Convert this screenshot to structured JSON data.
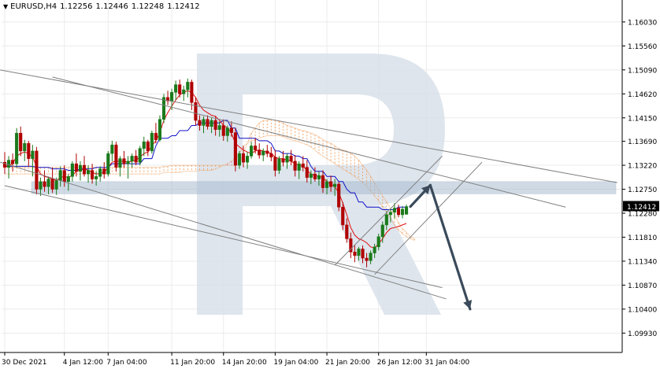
{
  "header": {
    "symbol": "EURUSD,H4",
    "open": "1.12256",
    "high": "1.12446",
    "low": "1.12248",
    "close": "1.12412"
  },
  "chart_data": {
    "type": "candlestick",
    "title": "",
    "price_axis": {
      "range": [
        1.0955,
        1.1646
      ],
      "ticks": [
        1.1603,
        1.1556,
        1.1509,
        1.1462,
        1.1415,
        1.1369,
        1.1322,
        1.1275,
        1.1228,
        1.1181,
        1.1134,
        1.1087,
        1.104,
        1.0993
      ],
      "tick_labels": [
        "1.16030",
        "1.15560",
        "1.15090",
        "1.14620",
        "1.14150",
        "1.13690",
        "1.13220",
        "1.12750",
        "1.12280",
        "1.11810",
        "1.11340",
        "1.10870",
        "1.10400",
        "1.09930"
      ],
      "current_price": 1.12412,
      "current_price_label": "1.12412"
    },
    "time_axis": {
      "labels": [
        "30 Dec 2021",
        "4 Jan 12:00",
        "7 Jan 04:00",
        "11 Jan 20:00",
        "14 Jan 20:00",
        "19 Jan 04:00",
        "21 Jan 20:00",
        "26 Jan 12:00",
        "31 Jan 04:00"
      ],
      "label_bars": [
        0,
        15,
        26,
        42,
        55,
        68,
        81,
        94,
        106
      ],
      "total_bars": 155
    },
    "candles": [
      [
        1.1328,
        1.1348,
        1.1305,
        1.1318
      ],
      [
        1.1318,
        1.134,
        1.1296,
        1.1332
      ],
      [
        1.1332,
        1.1345,
        1.131,
        1.1325
      ],
      [
        1.1325,
        1.1395,
        1.1318,
        1.1385
      ],
      [
        1.1385,
        1.1398,
        1.134,
        1.135
      ],
      [
        1.135,
        1.1372,
        1.133,
        1.1365
      ],
      [
        1.1365,
        1.137,
        1.132,
        1.1335
      ],
      [
        1.1335,
        1.1362,
        1.13,
        1.135
      ],
      [
        1.135,
        1.1358,
        1.1265,
        1.1275
      ],
      [
        1.1275,
        1.1298,
        1.1262,
        1.129
      ],
      [
        1.129,
        1.1312,
        1.127,
        1.128
      ],
      [
        1.128,
        1.13,
        1.1265,
        1.1295
      ],
      [
        1.1295,
        1.1318,
        1.1268,
        1.1275
      ],
      [
        1.1275,
        1.1298,
        1.1264,
        1.1292
      ],
      [
        1.1292,
        1.132,
        1.128,
        1.1312
      ],
      [
        1.1312,
        1.1322,
        1.128,
        1.129
      ],
      [
        1.129,
        1.1305,
        1.1272,
        1.13
      ],
      [
        1.13,
        1.133,
        1.129,
        1.1325
      ],
      [
        1.1325,
        1.1345,
        1.13,
        1.131
      ],
      [
        1.131,
        1.133,
        1.1292,
        1.1322
      ],
      [
        1.1322,
        1.134,
        1.13,
        1.1305
      ],
      [
        1.1305,
        1.1322,
        1.1288,
        1.1312
      ],
      [
        1.1312,
        1.1325,
        1.1286,
        1.1295
      ],
      [
        1.1295,
        1.131,
        1.1282,
        1.13
      ],
      [
        1.13,
        1.132,
        1.129,
        1.1315
      ],
      [
        1.1315,
        1.1328,
        1.1296,
        1.1305
      ],
      [
        1.1305,
        1.135,
        1.13,
        1.1345
      ],
      [
        1.1345,
        1.137,
        1.133,
        1.1362
      ],
      [
        1.1362,
        1.1368,
        1.131,
        1.1318
      ],
      [
        1.1318,
        1.134,
        1.13,
        1.1335
      ],
      [
        1.1335,
        1.135,
        1.1318,
        1.1325
      ],
      [
        1.1325,
        1.134,
        1.1296,
        1.133
      ],
      [
        1.133,
        1.1345,
        1.1318,
        1.134
      ],
      [
        1.134,
        1.1352,
        1.1322,
        1.1328
      ],
      [
        1.1328,
        1.136,
        1.1322,
        1.1355
      ],
      [
        1.1355,
        1.1378,
        1.134,
        1.1368
      ],
      [
        1.1368,
        1.1372,
        1.134,
        1.135
      ],
      [
        1.135,
        1.139,
        1.1345,
        1.1385
      ],
      [
        1.1385,
        1.1405,
        1.1365,
        1.1372
      ],
      [
        1.1372,
        1.142,
        1.1368,
        1.1412
      ],
      [
        1.1412,
        1.1462,
        1.1405,
        1.1455
      ],
      [
        1.1455,
        1.1468,
        1.144,
        1.1448
      ],
      [
        1.1448,
        1.1472,
        1.143,
        1.1465
      ],
      [
        1.1465,
        1.1488,
        1.145,
        1.148
      ],
      [
        1.148,
        1.149,
        1.1455,
        1.1462
      ],
      [
        1.1462,
        1.1478,
        1.1448,
        1.147
      ],
      [
        1.147,
        1.1492,
        1.1455,
        1.1485
      ],
      [
        1.1485,
        1.149,
        1.143,
        1.1445
      ],
      [
        1.1445,
        1.1455,
        1.14,
        1.141
      ],
      [
        1.141,
        1.142,
        1.139,
        1.14
      ],
      [
        1.14,
        1.1418,
        1.1385,
        1.1412
      ],
      [
        1.1412,
        1.142,
        1.1392,
        1.1398
      ],
      [
        1.1398,
        1.1415,
        1.1385,
        1.141
      ],
      [
        1.141,
        1.1418,
        1.138,
        1.1392
      ],
      [
        1.1392,
        1.1408,
        1.1378,
        1.14
      ],
      [
        1.14,
        1.1412,
        1.137,
        1.138
      ],
      [
        1.138,
        1.14,
        1.1368,
        1.1395
      ],
      [
        1.1395,
        1.1408,
        1.1378,
        1.1386
      ],
      [
        1.1386,
        1.1395,
        1.131,
        1.1322
      ],
      [
        1.1322,
        1.135,
        1.1315,
        1.1345
      ],
      [
        1.1345,
        1.136,
        1.1318,
        1.1328
      ],
      [
        1.1328,
        1.1348,
        1.1315,
        1.134
      ],
      [
        1.134,
        1.1368,
        1.1335,
        1.136
      ],
      [
        1.136,
        1.1375,
        1.1345,
        1.1352
      ],
      [
        1.1352,
        1.1365,
        1.1335,
        1.1342
      ],
      [
        1.1342,
        1.1355,
        1.133,
        1.135
      ],
      [
        1.135,
        1.1362,
        1.1338,
        1.1345
      ],
      [
        1.1345,
        1.1358,
        1.133,
        1.1338
      ],
      [
        1.1338,
        1.1352,
        1.13,
        1.1312
      ],
      [
        1.1312,
        1.134,
        1.1305,
        1.1335
      ],
      [
        1.1335,
        1.135,
        1.132,
        1.1328
      ],
      [
        1.1328,
        1.1345,
        1.1315,
        1.134
      ],
      [
        1.134,
        1.1352,
        1.1322,
        1.133
      ],
      [
        1.133,
        1.1342,
        1.13,
        1.1312
      ],
      [
        1.1312,
        1.133,
        1.1295,
        1.1325
      ],
      [
        1.1325,
        1.134,
        1.131,
        1.1318
      ],
      [
        1.1318,
        1.1332,
        1.1288,
        1.1298
      ],
      [
        1.1298,
        1.1312,
        1.1285,
        1.1305
      ],
      [
        1.1305,
        1.1318,
        1.129,
        1.1295
      ],
      [
        1.1295,
        1.131,
        1.1282,
        1.1302
      ],
      [
        1.1302,
        1.1312,
        1.1268,
        1.1278
      ],
      [
        1.1278,
        1.1295,
        1.1265,
        1.129
      ],
      [
        1.129,
        1.1302,
        1.127,
        1.128
      ],
      [
        1.128,
        1.1295,
        1.1262,
        1.1285
      ],
      [
        1.1285,
        1.129,
        1.1232,
        1.124
      ],
      [
        1.124,
        1.125,
        1.1195,
        1.1205
      ],
      [
        1.1205,
        1.1218,
        1.117,
        1.1178
      ],
      [
        1.1178,
        1.119,
        1.114,
        1.1152
      ],
      [
        1.1152,
        1.1165,
        1.1132,
        1.1145
      ],
      [
        1.1145,
        1.1162,
        1.1135,
        1.1158
      ],
      [
        1.1158,
        1.1165,
        1.113,
        1.114
      ],
      [
        1.114,
        1.115,
        1.1122,
        1.1135
      ],
      [
        1.1135,
        1.1155,
        1.1128,
        1.115
      ],
      [
        1.115,
        1.1168,
        1.114,
        1.1162
      ],
      [
        1.1162,
        1.1188,
        1.1155,
        1.1182
      ],
      [
        1.1182,
        1.1212,
        1.117,
        1.1205
      ],
      [
        1.1205,
        1.1232,
        1.1195,
        1.1225
      ],
      [
        1.1225,
        1.1238,
        1.121,
        1.123
      ],
      [
        1.123,
        1.1248,
        1.1218,
        1.1238
      ],
      [
        1.1238,
        1.1245,
        1.122,
        1.1225
      ],
      [
        1.1225,
        1.1242,
        1.1218,
        1.1236
      ],
      [
        1.1226,
        1.1245,
        1.1225,
        1.1241
      ]
    ],
    "kijun_line": [
      1.132,
      1.132,
      1.132,
      1.132,
      1.132,
      1.132,
      1.132,
      1.132,
      1.1318,
      1.1318,
      1.1318,
      1.1318,
      1.1315,
      1.1315,
      1.1315,
      1.1315,
      1.1312,
      1.1312,
      1.1312,
      1.1315,
      1.1315,
      1.1315,
      1.1315,
      1.1318,
      1.1318,
      1.1318,
      1.1318,
      1.1325,
      1.1325,
      1.1325,
      1.1325,
      1.1325,
      1.1325,
      1.1325,
      1.1325,
      1.1335,
      1.1335,
      1.1335,
      1.136,
      1.1375,
      1.1375,
      1.1375,
      1.138,
      1.138,
      1.139,
      1.139,
      1.139,
      1.14,
      1.14,
      1.1405,
      1.1405,
      1.1405,
      1.1405,
      1.1405,
      1.1405,
      1.141,
      1.141,
      1.1395,
      1.1395,
      1.1375,
      1.1375,
      1.1375,
      1.1375,
      1.1375,
      1.137,
      1.137,
      1.137,
      1.1365,
      1.135,
      1.135,
      1.1345,
      1.1345,
      1.1345,
      1.134,
      1.134,
      1.1335,
      1.1335,
      1.132,
      1.131,
      1.131,
      1.131,
      1.13,
      1.13,
      1.13,
      1.129,
      1.129,
      1.1275,
      1.1268,
      1.1268,
      1.125,
      1.125,
      1.124,
      1.124,
      1.124,
      1.124,
      1.1235,
      1.1235,
      1.1235,
      1.1235,
      1.124,
      1.124,
      1.124
    ],
    "tenkan_line": [
      1.132,
      1.1322,
      1.1325,
      1.134,
      1.1345,
      1.1348,
      1.1345,
      1.1338,
      1.132,
      1.1305,
      1.13,
      1.1298,
      1.1295,
      1.1292,
      1.1298,
      1.13,
      1.1298,
      1.1302,
      1.131,
      1.1312,
      1.1315,
      1.1312,
      1.1308,
      1.1305,
      1.1306,
      1.1308,
      1.1318,
      1.1328,
      1.133,
      1.133,
      1.133,
      1.1328,
      1.133,
      1.1332,
      1.1338,
      1.1345,
      1.1348,
      1.136,
      1.137,
      1.1385,
      1.141,
      1.1425,
      1.1438,
      1.145,
      1.146,
      1.1465,
      1.1468,
      1.1465,
      1.1455,
      1.144,
      1.143,
      1.1425,
      1.142,
      1.1418,
      1.141,
      1.14,
      1.1395,
      1.1385,
      1.1365,
      1.1358,
      1.1352,
      1.1348,
      1.1345,
      1.135,
      1.1352,
      1.135,
      1.1348,
      1.1345,
      1.1338,
      1.1335,
      1.1335,
      1.1332,
      1.133,
      1.1325,
      1.1322,
      1.132,
      1.1312,
      1.1305,
      1.1302,
      1.13,
      1.1298,
      1.129,
      1.1285,
      1.128,
      1.1268,
      1.1248,
      1.1225,
      1.12,
      1.1185,
      1.1178,
      1.1175,
      1.117,
      1.1162,
      1.116,
      1.1168,
      1.1178,
      1.119,
      1.1198,
      1.12,
      1.1202,
      1.1205,
      1.1208
    ],
    "cloud_span_a": [
      1.1318,
      1.1318,
      1.1318,
      1.1318,
      1.1318,
      1.1318,
      1.1318,
      1.1318,
      1.1318,
      1.1318,
      1.1318,
      1.1318,
      1.1318,
      1.1318,
      1.1318,
      1.1318,
      1.1318,
      1.1318,
      1.1318,
      1.1318,
      1.1318,
      1.1318,
      1.1318,
      1.1318,
      1.1318,
      1.1318,
      1.1318,
      1.1318,
      1.1318,
      1.1318,
      1.1318,
      1.1318,
      1.1318,
      1.1318,
      1.1318,
      1.1318,
      1.1318,
      1.1318,
      1.1318,
      1.1318,
      1.132,
      1.132,
      1.1322,
      1.1322,
      1.1322,
      1.1322,
      1.1322,
      1.1322,
      1.1322,
      1.1322,
      1.1322,
      1.1322,
      1.1322,
      1.1322,
      1.1322,
      1.1322,
      1.1322,
      1.1322,
      1.1322,
      1.1325,
      1.1345,
      1.1365,
      1.1385,
      1.1395,
      1.1405,
      1.141,
      1.141,
      1.1412,
      1.141,
      1.1408,
      1.1405,
      1.14,
      1.1398,
      1.1395,
      1.1392,
      1.139,
      1.1388,
      1.1385,
      1.1382,
      1.1378,
      1.1372,
      1.1368,
      1.1365,
      1.136,
      1.1355,
      1.1352,
      1.135,
      1.1345,
      1.134,
      1.1332,
      1.1322,
      1.1312,
      1.13,
      1.1288,
      1.1275,
      1.1262,
      1.125,
      1.1238,
      1.1225,
      1.121,
      1.1198,
      1.119,
      1.1182,
      1.1178
    ],
    "cloud_span_b": [
      1.1305,
      1.1305,
      1.1305,
      1.1305,
      1.1305,
      1.1305,
      1.1305,
      1.1305,
      1.1305,
      1.1305,
      1.1305,
      1.1305,
      1.1305,
      1.1305,
      1.1305,
      1.1305,
      1.1305,
      1.1305,
      1.1305,
      1.1305,
      1.1305,
      1.1305,
      1.1305,
      1.1305,
      1.1305,
      1.1305,
      1.1305,
      1.1305,
      1.1305,
      1.1305,
      1.1305,
      1.1305,
      1.1305,
      1.1305,
      1.1305,
      1.1305,
      1.1305,
      1.1305,
      1.1305,
      1.1305,
      1.1308,
      1.1308,
      1.1308,
      1.1308,
      1.1308,
      1.131,
      1.131,
      1.131,
      1.131,
      1.1312,
      1.1312,
      1.1312,
      1.1312,
      1.1315,
      1.1318,
      1.1322,
      1.1325,
      1.133,
      1.1335,
      1.1345,
      1.136,
      1.1365,
      1.137,
      1.1372,
      1.1375,
      1.1378,
      1.138,
      1.138,
      1.138,
      1.138,
      1.1378,
      1.1375,
      1.1372,
      1.137,
      1.1368,
      1.1365,
      1.1362,
      1.1358,
      1.1352,
      1.1345,
      1.134,
      1.1335,
      1.133,
      1.1325,
      1.132,
      1.1315,
      1.131,
      1.1305,
      1.13,
      1.1295,
      1.1288,
      1.128,
      1.1272,
      1.1262,
      1.1252,
      1.124,
      1.123,
      1.1218,
      1.1205,
      1.1195,
      1.1188,
      1.1182,
      1.1178,
      1.1175
    ],
    "support_zone": [
      1.1266,
      1.129
    ],
    "trendlines": [
      {
        "name": "upper-channel-top",
        "p1": [
          -2,
          1.151
        ],
        "p2": [
          154,
          1.1288
        ]
      },
      {
        "name": "upper-channel-mid",
        "p1": [
          12,
          1.1495
        ],
        "p2": [
          141,
          1.124
        ]
      },
      {
        "name": "lower-channel-top",
        "p1": [
          -2,
          1.133
        ],
        "p2": [
          111,
          1.106
        ]
      },
      {
        "name": "lower-channel-bottom",
        "p1": [
          0,
          1.1282
        ],
        "p2": [
          110,
          1.1082
        ]
      },
      {
        "name": "rising-channel-lower",
        "p1": [
          93,
          1.1108
        ],
        "p2": [
          120,
          1.1328
        ]
      },
      {
        "name": "rising-channel-upper",
        "p1": [
          83,
          1.1126
        ],
        "p2": [
          110,
          1.134
        ]
      }
    ],
    "forecast_path": [
      {
        "bar": 102,
        "price": 1.1241
      },
      {
        "bar": 107,
        "price": 1.1283
      },
      {
        "bar": 117,
        "price": 1.104
      }
    ],
    "colors": {
      "bull": "#1a7a1a",
      "bear": "#b00000",
      "tenkan": "#e01010",
      "kijun": "#1010c8",
      "cloud": "#f0a060",
      "cloud_bear": "#d070c0",
      "zone": "#a8bcd0",
      "trendline": "#808080",
      "arrow": "#3a4a5a",
      "watermark": "#d8e0ea",
      "price_tag_bg": "#000000"
    }
  }
}
